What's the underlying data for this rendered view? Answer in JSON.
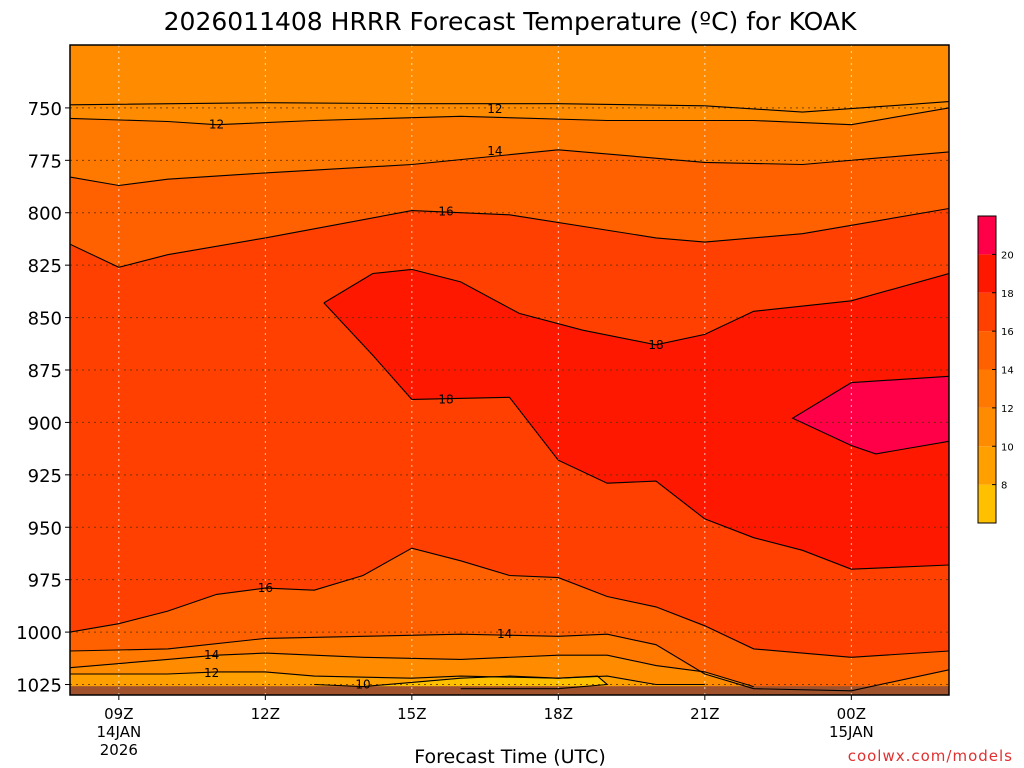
{
  "chart_data": {
    "type": "heatmap",
    "title": "2026011408 HRRR Forecast Temperature (ºC) for KOAK",
    "xlabel": "Forecast Time (UTC)",
    "ylabel": "",
    "credit": "coolwx.com/models",
    "x_range_hours": [
      8,
      26
    ],
    "y_range_hpa": [
      720,
      1030
    ],
    "y_ticks": [
      "750",
      "775",
      "800",
      "825",
      "850",
      "875",
      "900",
      "925",
      "950",
      "975",
      "1000",
      "1025"
    ],
    "x_ticks": [
      {
        "hour": 9,
        "label": "09Z",
        "sub1": "14JAN",
        "sub2": "2026"
      },
      {
        "hour": 12,
        "label": "12Z",
        "sub1": "",
        "sub2": ""
      },
      {
        "hour": 15,
        "label": "15Z",
        "sub1": "",
        "sub2": ""
      },
      {
        "hour": 18,
        "label": "18Z",
        "sub1": "",
        "sub2": ""
      },
      {
        "hour": 21,
        "label": "21Z",
        "sub1": "",
        "sub2": ""
      },
      {
        "hour": 24,
        "label": "00Z",
        "sub1": "15JAN",
        "sub2": ""
      }
    ],
    "grid": true,
    "colorbar": {
      "ticks": [
        "8",
        "10",
        "12",
        "14",
        "16",
        "18",
        "20"
      ],
      "levels": [
        6,
        8,
        10,
        12,
        14,
        16,
        18,
        20,
        22
      ],
      "colors": [
        "#FFC000",
        "#FFA000",
        "#FF8C00",
        "#FF7800",
        "#FF6000",
        "#FF4000",
        "#FF1800",
        "#FF0048"
      ]
    },
    "contours": [
      {
        "level": 12,
        "label": "12",
        "bands_below": "#FF8C00",
        "label_at": [
          16.7,
          750.5
        ],
        "points": [
          [
            8,
            748.5
          ],
          [
            12,
            747.5
          ],
          [
            15,
            748
          ],
          [
            18,
            748
          ],
          [
            21,
            749
          ],
          [
            23,
            752
          ],
          [
            26,
            747
          ]
        ]
      },
      {
        "level": 12,
        "label": "12",
        "bands_below": "#FF8C00",
        "label_at": [
          11.0,
          758.0
        ],
        "points": [
          [
            8,
            755
          ],
          [
            10,
            756.5
          ],
          [
            11,
            758
          ],
          [
            13,
            756
          ],
          [
            16,
            754
          ],
          [
            19,
            756
          ],
          [
            22,
            756
          ],
          [
            24,
            758
          ],
          [
            26,
            750
          ]
        ]
      },
      {
        "level": 14,
        "label": "14",
        "bands_below": "#FF7800",
        "label_at": [
          16.7,
          770.5
        ],
        "points": [
          [
            8,
            783
          ],
          [
            9,
            787
          ],
          [
            10,
            784
          ],
          [
            12,
            781
          ],
          [
            15,
            777
          ],
          [
            18,
            770
          ],
          [
            21,
            776
          ],
          [
            23,
            777
          ],
          [
            26,
            771
          ]
        ]
      },
      {
        "level": 16,
        "label": "16",
        "bands_below": "#FF6000",
        "label_at": [
          15.7,
          799.5
        ],
        "points": [
          [
            8,
            815
          ],
          [
            9,
            826
          ],
          [
            10,
            820
          ],
          [
            12,
            812
          ],
          [
            15,
            799
          ],
          [
            17,
            801
          ],
          [
            20,
            812
          ],
          [
            21,
            814
          ],
          [
            23,
            810
          ],
          [
            26,
            798
          ]
        ]
      },
      {
        "level": 18,
        "label": "18",
        "bands_below": "#FF4000",
        "label_at": [
          20.0,
          863.0
        ],
        "points": [
          [
            13.2,
            843
          ],
          [
            14.2,
            829
          ],
          [
            15,
            827
          ],
          [
            16,
            833
          ],
          [
            17.2,
            848
          ],
          [
            18.5,
            856
          ],
          [
            20,
            863
          ],
          [
            21,
            858
          ],
          [
            22,
            847
          ],
          [
            24,
            842
          ],
          [
            26,
            829
          ]
        ]
      },
      {
        "level": 18,
        "label": "18",
        "bands_below": "#FF4000",
        "label_at": [
          15.7,
          889.0
        ],
        "points": [
          [
            13.2,
            843
          ],
          [
            14.2,
            868
          ],
          [
            15,
            889
          ],
          [
            17,
            888
          ],
          [
            18,
            918
          ],
          [
            19,
            929
          ],
          [
            20,
            928
          ],
          [
            21,
            946
          ],
          [
            22,
            955
          ],
          [
            23,
            961
          ],
          [
            24,
            970
          ],
          [
            26,
            968
          ]
        ]
      },
      {
        "level": 20,
        "label": "",
        "bands_below": "#FF1800",
        "label_at": null,
        "points": [
          [
            24,
            881
          ],
          [
            26,
            878
          ],
          [
            26,
            909
          ],
          [
            24.5,
            915
          ],
          [
            24,
            911
          ],
          [
            22.8,
            898
          ],
          [
            24,
            881
          ]
        ]
      },
      {
        "level": 16,
        "label": "16",
        "bands_below": "#FF6000",
        "label_at": [
          12.0,
          979.0
        ],
        "points": [
          [
            8,
            1000
          ],
          [
            9,
            996
          ],
          [
            10,
            990
          ],
          [
            11,
            982
          ],
          [
            12,
            979
          ],
          [
            13,
            980
          ],
          [
            14,
            973
          ],
          [
            15,
            960
          ],
          [
            16,
            966
          ],
          [
            17,
            973
          ],
          [
            18,
            974
          ],
          [
            19,
            983
          ],
          [
            20,
            988
          ],
          [
            21,
            997
          ],
          [
            22,
            1008
          ],
          [
            24,
            1012
          ],
          [
            26,
            1009
          ]
        ]
      },
      {
        "level": 14,
        "label": "14",
        "bands_below": "#FF7800",
        "label_at": [
          16.9,
          1001.0
        ],
        "points": [
          [
            8,
            1009
          ],
          [
            10,
            1008
          ],
          [
            12,
            1003
          ],
          [
            14,
            1002
          ],
          [
            16,
            1001
          ],
          [
            18,
            1002
          ],
          [
            19,
            1001
          ],
          [
            20,
            1006
          ],
          [
            21,
            1020
          ],
          [
            22,
            1027
          ],
          [
            24,
            1028
          ],
          [
            26,
            1018
          ]
        ]
      },
      {
        "level": 14,
        "label": "14",
        "bands_below": "#FF7800",
        "label_at": [
          10.9,
          1011.0
        ],
        "points": [
          [
            8,
            1017
          ],
          [
            10,
            1013
          ],
          [
            11,
            1011
          ],
          [
            12,
            1010
          ],
          [
            14,
            1012
          ],
          [
            16,
            1013
          ],
          [
            18,
            1011
          ],
          [
            19,
            1011
          ],
          [
            20,
            1016
          ],
          [
            21,
            1019
          ],
          [
            22,
            1026
          ]
        ]
      },
      {
        "level": 12,
        "label": "12",
        "bands_below": "#FF8C00",
        "label_at": [
          10.9,
          1019.5
        ],
        "points": [
          [
            8,
            1020
          ],
          [
            10,
            1020
          ],
          [
            11,
            1019
          ],
          [
            12,
            1019
          ],
          [
            13,
            1021
          ],
          [
            15,
            1022
          ],
          [
            16,
            1021
          ],
          [
            18,
            1022
          ],
          [
            19,
            1021
          ],
          [
            20,
            1025
          ],
          [
            21,
            1025
          ]
        ]
      },
      {
        "level": 10,
        "label": "10",
        "bands_below": "#FFA000",
        "label_at": [
          14.0,
          1025.0
        ],
        "points": [
          [
            13,
            1025
          ],
          [
            14,
            1026
          ],
          [
            15,
            1024
          ],
          [
            16,
            1022
          ],
          [
            17,
            1021
          ],
          [
            18,
            1022
          ],
          [
            18.8,
            1021
          ],
          [
            19,
            1025
          ],
          [
            18,
            1027
          ],
          [
            16,
            1027
          ]
        ]
      }
    ]
  }
}
